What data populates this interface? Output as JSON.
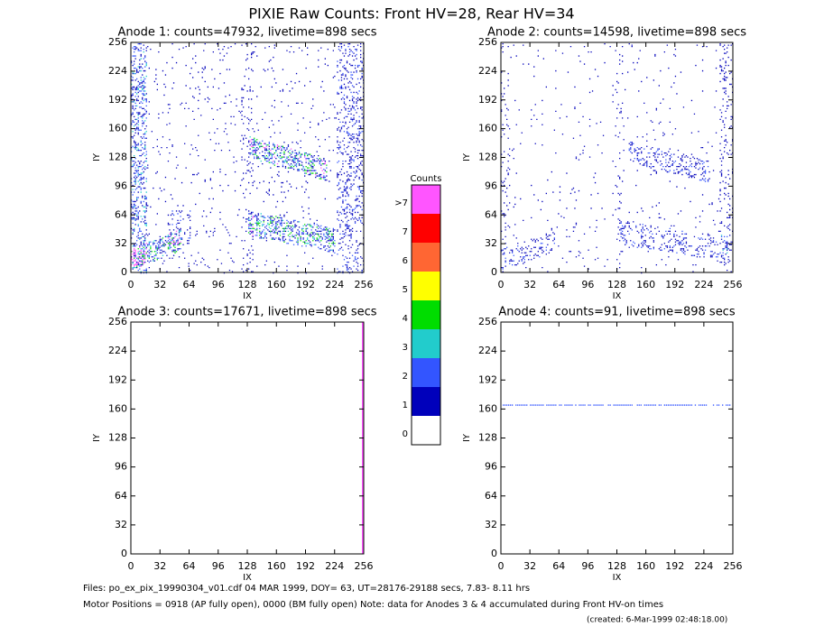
{
  "title": "PIXIE Raw Counts:  Front HV=28, Rear HV=34",
  "panels": [
    {
      "title": "Anode 1: counts=47932, livetime=898 secs",
      "xlabel": "IX",
      "ylabel": "IY",
      "xlim": [
        0,
        256
      ],
      "ylim": [
        0,
        256
      ],
      "xticks": [
        0,
        32,
        64,
        96,
        128,
        160,
        192,
        224,
        256
      ],
      "yticks": [
        0,
        32,
        64,
        96,
        128,
        160,
        192,
        224,
        256
      ]
    },
    {
      "title": "Anode 2: counts=14598, livetime=898 secs",
      "xlabel": "IX",
      "ylabel": "IY",
      "xlim": [
        0,
        256
      ],
      "ylim": [
        0,
        256
      ],
      "xticks": [
        0,
        32,
        64,
        96,
        128,
        160,
        192,
        224,
        256
      ],
      "yticks": [
        0,
        32,
        64,
        96,
        128,
        160,
        192,
        224,
        256
      ]
    },
    {
      "title": "Anode 3: counts=17671, livetime=898 secs",
      "xlabel": "IX",
      "ylabel": "IY",
      "xlim": [
        0,
        256
      ],
      "ylim": [
        0,
        256
      ],
      "xticks": [
        0,
        32,
        64,
        96,
        128,
        160,
        192,
        224,
        256
      ],
      "yticks": [
        0,
        32,
        64,
        96,
        128,
        160,
        192,
        224,
        256
      ]
    },
    {
      "title": "Anode 4: counts=91, livetime=898 secs",
      "xlabel": "IX",
      "ylabel": "IY",
      "xlim": [
        0,
        256
      ],
      "ylim": [
        0,
        256
      ],
      "xticks": [
        0,
        32,
        64,
        96,
        128,
        160,
        192,
        224,
        256
      ],
      "yticks": [
        0,
        32,
        64,
        96,
        128,
        160,
        192,
        224,
        256
      ]
    }
  ],
  "colorbar": {
    "title": "Counts",
    "levels": [
      {
        "label": "0",
        "color": "#ffffff"
      },
      {
        "label": "1",
        "color": "#0000bb"
      },
      {
        "label": "2",
        "color": "#3355ff"
      },
      {
        "label": "3",
        "color": "#22cccc"
      },
      {
        "label": "4",
        "color": "#00dd00"
      },
      {
        "label": "5",
        "color": "#ffff00"
      },
      {
        "label": "6",
        "color": "#ff6633"
      },
      {
        "label": "7",
        "color": "#ff0000"
      },
      {
        "label": ">7",
        "color": "#ff55ff"
      }
    ]
  },
  "footer": {
    "lines": [
      "Files: po_ex_pix_19990304_v01.cdf    04 MAR 1999, DOY= 63, UT=28176-29188 secs,  7.83- 8.11 hrs",
      "Motor Positions = 0918 (AP fully open), 0000 (BM fully open)    Note: data for Anodes 3 & 4 accumulated during Front HV-on times"
    ],
    "created": "(created:  6-Mar-1999 02:48:18.00)"
  }
}
